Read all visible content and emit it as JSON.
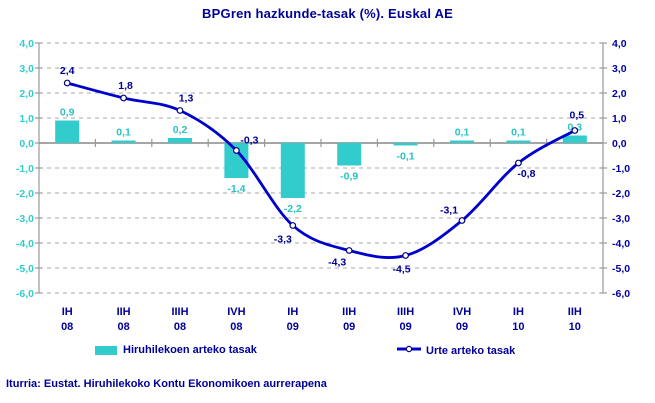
{
  "title": "BPGren hazkunde-tasak (%). Euskal AE",
  "source": "Iturria: Eustat. Hiruhilekoko Kontu Ekonomikoen aurrerapena",
  "colors": {
    "bar_teal": "#33CCCC",
    "bar_label_teal": "#29C3C3",
    "line_blue": "#0000CC",
    "navy_text": "#000099",
    "right_axis_text": "#0000A6",
    "left_axis_text": "#33CCCC",
    "gridline": "#AAAAAA",
    "axis": "#999999",
    "marker_stroke": "#000080",
    "background": "#FFFFFF"
  },
  "chart_data": {
    "type": "bar",
    "subtype": "combo-bar-line",
    "title": "BPGren hazkunde-tasak (%). Euskal AE",
    "xlabel": "",
    "ylabel": "",
    "ylim": [
      -6,
      4
    ],
    "y_step": 1,
    "grid": "horizontal-dashed",
    "legend_position": "bottom",
    "dual_axis_labels": true,
    "categories": [
      {
        "quarter": "IH",
        "year": "08"
      },
      {
        "quarter": "IIH",
        "year": "08"
      },
      {
        "quarter": "IIIH",
        "year": "08"
      },
      {
        "quarter": "IVH",
        "year": "08"
      },
      {
        "quarter": "IH",
        "year": "09"
      },
      {
        "quarter": "IIH",
        "year": "09"
      },
      {
        "quarter": "IIIH",
        "year": "09"
      },
      {
        "quarter": "IVH",
        "year": "09"
      },
      {
        "quarter": "IH",
        "year": "10"
      },
      {
        "quarter": "IIH",
        "year": "10"
      }
    ],
    "y_tick_labels": [
      "4,0",
      "3,0",
      "2,0",
      "1,0",
      "0,0",
      "-1,0",
      "-2,0",
      "-3,0",
      "-4,0",
      "-5,0",
      "-6,0"
    ],
    "series": [
      {
        "name": "Hiruhilekoen arteko tasak",
        "type": "bar",
        "color": "#33CCCC",
        "values": [
          0.9,
          0.1,
          0.2,
          -1.4,
          -2.2,
          -0.9,
          -0.1,
          0.1,
          0.1,
          0.3
        ],
        "labels": [
          "0,9",
          "0,1",
          "0,2",
          "-1,4",
          "-2,2",
          "-0,9",
          "-0,1",
          "0,1",
          "0,1",
          "0,3"
        ]
      },
      {
        "name": "Urte arteko tasak",
        "type": "line",
        "color": "#0000CC",
        "values": [
          2.4,
          1.8,
          1.3,
          -0.3,
          -3.3,
          -4.3,
          -4.5,
          -3.1,
          -0.8,
          0.5
        ],
        "labels": [
          "2,4",
          "1,8",
          "1,3",
          "-0,3",
          "-3,3",
          "-4,3",
          "-4,5",
          "-3,1",
          "-0,8",
          "0,5"
        ]
      }
    ]
  }
}
